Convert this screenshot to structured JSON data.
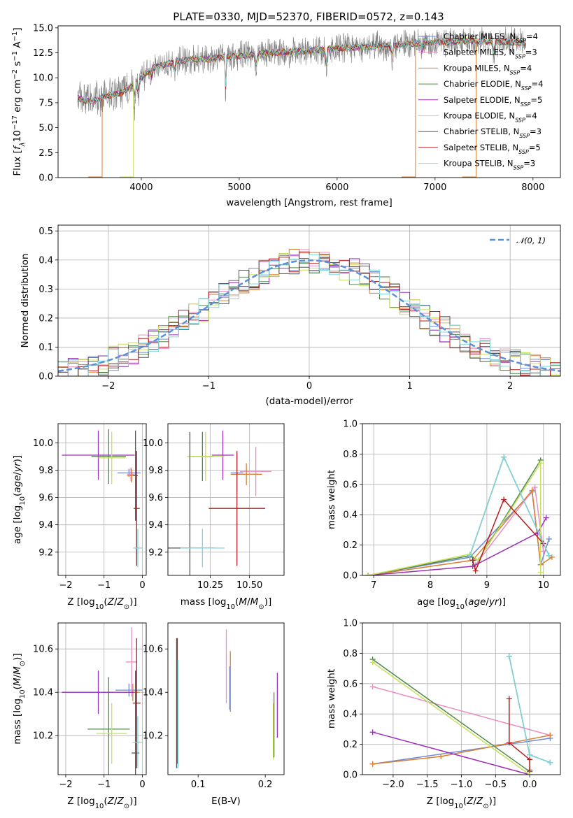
{
  "figure": {
    "title": "PLATE=0330, MJD=52370, FIBERID=0572, z=0.143"
  },
  "colors": {
    "Chabrier MILES": "#6f8ad7",
    "Salpeter MILES": "#e88fc3",
    "Kroupa MILES": "#d98031",
    "Chabrier ELODIE": "#4f8a4c",
    "Salpeter ELODIE": "#9b30b8",
    "Kroupa ELODIE": "#c8e05a",
    "Chabrier STELIB": "#555555",
    "Salpeter STELIB": "#b51d1d",
    "Kroupa STELIB": "#7fd6dc",
    "data": "#808080",
    "normal": "#5b8fd6"
  },
  "chart_data": [
    {
      "id": "spectrum",
      "type": "line",
      "title": "PLATE=0330, MJD=52370, FIBERID=0572, z=0.143",
      "xlabel": "wavelength [Angstrom, rest frame]",
      "ylabel": "Flux [f_λ 10^-17 erg cm^-2 s^-1 A^-1]",
      "xlim": [
        3150,
        8280
      ],
      "ylim": [
        0,
        15.2
      ],
      "xticks": [
        4000,
        5000,
        6000,
        7000,
        8000
      ],
      "yticks": [
        0.0,
        2.5,
        5.0,
        7.5,
        10.0,
        12.5,
        15.0
      ],
      "ytick_labels": [
        "0.0",
        "2.5",
        "5.0",
        "7.5",
        "10.0",
        "12.5",
        "15.0"
      ],
      "grid": false,
      "legend_position": "right",
      "continuum": {
        "x": [
          3350,
          3500,
          3650,
          3800,
          3950,
          4100,
          4300,
          4500,
          4700,
          4900,
          5100,
          5300,
          5500,
          5700,
          5900,
          6100,
          6300,
          6500,
          6700,
          6900,
          7100,
          7300,
          7500,
          7700,
          7900
        ],
        "y": [
          7.9,
          7.6,
          8.2,
          8.5,
          9.6,
          10.9,
          11.5,
          11.8,
          11.9,
          12.1,
          12.3,
          12.5,
          12.6,
          12.7,
          12.9,
          13.0,
          13.1,
          13.2,
          13.4,
          13.5,
          13.6,
          13.7,
          13.7,
          13.6,
          13.5
        ]
      },
      "series": [
        {
          "name": "Chabrier MILES",
          "nssp": "4"
        },
        {
          "name": "Salpeter MILES",
          "nssp": "3"
        },
        {
          "name": "Kroupa MILES",
          "nssp": "4"
        },
        {
          "name": "Chabrier ELODIE",
          "nssp": "4"
        },
        {
          "name": "Salpeter ELODIE",
          "nssp": "5"
        },
        {
          "name": "Kroupa ELODIE",
          "nssp": "4"
        },
        {
          "name": "Chabrier STELIB",
          "nssp": "3"
        },
        {
          "name": "Salpeter STELIB",
          "nssp": "5"
        },
        {
          "name": "Kroupa STELIB",
          "nssp": "3"
        }
      ]
    },
    {
      "id": "residuals",
      "type": "histogram",
      "xlabel": "(data-model)/error",
      "ylabel": "Normed distribution",
      "xlim": [
        -2.5,
        2.5
      ],
      "ylim": [
        0,
        0.52
      ],
      "xticks": [
        -2,
        -1,
        0,
        1,
        2
      ],
      "xtick_labels": [
        "−2",
        "−1",
        "0",
        "1",
        "2"
      ],
      "yticks": [
        0.0,
        0.1,
        0.2,
        0.3,
        0.4,
        0.5
      ],
      "ytick_labels": [
        "0.0",
        "0.1",
        "0.2",
        "0.3",
        "0.4",
        "0.5"
      ],
      "grid": true,
      "legend_position": "top-right",
      "legend_entry": "𝒩(0, 1)",
      "bin_width": 0.1
    },
    {
      "id": "age-Z",
      "type": "errorbar",
      "xlabel": "Z [log10(Z/Z⊙)]",
      "ylabel": "age [log10(age/yr)]",
      "xlim": [
        -2.2,
        0.1
      ],
      "ylim": [
        9.03,
        10.14
      ],
      "xticks": [
        -2,
        -1,
        0
      ],
      "xtick_labels": [
        "−2",
        "−1",
        "0"
      ],
      "yticks": [
        9.2,
        9.4,
        9.6,
        9.8,
        10.0
      ],
      "ytick_labels": [
        "9.2",
        "9.4",
        "9.6",
        "9.8",
        "10.0"
      ],
      "grid": true,
      "points": [
        {
          "series": "Chabrier MILES",
          "x": -0.35,
          "xerr": 0.3,
          "y": 9.78,
          "yerr": 0.03
        },
        {
          "series": "Salpeter MILES",
          "x": -0.3,
          "xerr": 0.1,
          "y": 9.77,
          "yerr": 0.05
        },
        {
          "series": "Kroupa MILES",
          "x": -0.28,
          "xerr": 0.12,
          "y": 9.76,
          "yerr": 0.05
        },
        {
          "series": "Chabrier ELODIE",
          "x": -0.88,
          "xerr": 0.45,
          "y": 9.9,
          "yerr": 0.2
        },
        {
          "series": "Salpeter ELODIE",
          "x": -1.15,
          "xerr": 0.95,
          "y": 9.91,
          "yerr": 0.18
        },
        {
          "series": "Kroupa ELODIE",
          "x": -0.8,
          "xerr": 0.35,
          "y": 9.89,
          "yerr": 0.19
        },
        {
          "series": "Chabrier STELIB",
          "x": -0.18,
          "xerr": 0.06,
          "y": 9.76,
          "yerr": 0.33
        },
        {
          "series": "Salpeter STELIB",
          "x": -0.15,
          "xerr": 0.08,
          "y": 9.52,
          "yerr": 0.42
        },
        {
          "series": "Kroupa STELIB",
          "x": -0.12,
          "xerr": 0.12,
          "y": 9.23,
          "yerr": 0.14
        }
      ]
    },
    {
      "id": "age-mass",
      "type": "errorbar",
      "xlabel": "mass [log10(M/M⊙)]",
      "ylabel": "",
      "xlim": [
        9.98,
        10.72
      ],
      "ylim": [
        9.03,
        10.14
      ],
      "xticks": [
        10.25,
        10.5
      ],
      "xtick_labels": [
        "10.25",
        "10.50"
      ],
      "yticks": [
        9.2,
        9.4,
        9.6,
        9.8,
        10.0
      ],
      "ytick_labels": [
        "9.2",
        "9.4",
        "9.6",
        "9.8",
        "10.0"
      ],
      "grid": true,
      "points": [
        {
          "series": "Chabrier MILES",
          "x": 10.42,
          "xerr": 0.04,
          "y": 9.78,
          "yerr": 0.14
        },
        {
          "series": "Salpeter MILES",
          "x": 10.54,
          "xerr": 0.1,
          "y": 9.79,
          "yerr": 0.18
        },
        {
          "series": "Kroupa MILES",
          "x": 10.48,
          "xerr": 0.1,
          "y": 9.77,
          "yerr": 0.08
        },
        {
          "series": "Chabrier ELODIE",
          "x": 10.2,
          "xerr": 0.07,
          "y": 9.9,
          "yerr": 0.18
        },
        {
          "series": "Salpeter ELODIE",
          "x": 10.33,
          "xerr": 0.07,
          "y": 9.91,
          "yerr": 0.18
        },
        {
          "series": "Kroupa ELODIE",
          "x": 10.22,
          "xerr": 0.12,
          "y": 9.9,
          "yerr": 0.18
        },
        {
          "series": "Chabrier STELIB",
          "x": 10.12,
          "xerr": 0.16,
          "y": 9.23,
          "yerr": 0.85
        },
        {
          "series": "Salpeter STELIB",
          "x": 10.42,
          "xerr": 0.18,
          "y": 9.52,
          "yerr": 0.42
        },
        {
          "series": "Kroupa STELIB",
          "x": 10.2,
          "xerr": 0.14,
          "y": 9.23,
          "yerr": 0.14
        }
      ]
    },
    {
      "id": "mw-age",
      "type": "line",
      "xlabel": "age [log10(age/yr)]",
      "ylabel": "mass weight",
      "xlim": [
        6.8,
        10.3
      ],
      "ylim": [
        0,
        1.0
      ],
      "xticks": [
        7,
        8,
        9,
        10
      ],
      "xtick_labels": [
        "7",
        "8",
        "9",
        "10"
      ],
      "yticks": [
        0.0,
        0.2,
        0.4,
        0.6,
        0.8,
        1.0
      ],
      "ytick_labels": [
        "0.0",
        "0.2",
        "0.4",
        "0.6",
        "0.8",
        "1.0"
      ],
      "grid": true,
      "series": [
        {
          "name": "Chabrier MILES",
          "x": [
            6.9,
            8.7,
            9.8,
            9.95,
            10.1
          ],
          "y": [
            0.0,
            0.12,
            0.55,
            0.07,
            0.24
          ]
        },
        {
          "name": "Salpeter MILES",
          "x": [
            8.8,
            9.85,
            10.0
          ],
          "y": [
            0.07,
            0.58,
            0.16
          ]
        },
        {
          "name": "Kroupa MILES",
          "x": [
            6.9,
            8.75,
            9.8,
            9.95,
            10.15
          ],
          "y": [
            0.0,
            0.1,
            0.56,
            0.07,
            0.12
          ]
        },
        {
          "name": "Chabrier ELODIE",
          "x": [
            6.9,
            8.7,
            8.85,
            9.95
          ],
          "y": [
            0.0,
            0.13,
            0.1,
            0.76
          ]
        },
        {
          "name": "Salpeter ELODIE",
          "x": [
            6.9,
            8.75,
            9.9,
            10.05
          ],
          "y": [
            0.0,
            0.06,
            0.28,
            0.38
          ]
        },
        {
          "name": "Kroupa ELODIE",
          "x": [
            6.9,
            8.7,
            8.85,
            9.95,
            9.95
          ],
          "y": [
            0.0,
            0.14,
            0.1,
            0.74,
            0.02
          ]
        },
        {
          "name": "Chabrier STELIB",
          "x": [
            8.7,
            9.3,
            10.1
          ],
          "y": [
            0.13,
            0.78,
            0.13
          ]
        },
        {
          "name": "Salpeter STELIB",
          "x": [
            8.75,
            8.8,
            9.3,
            10.0
          ],
          "y": [
            0.1,
            0.03,
            0.5,
            0.21
          ]
        },
        {
          "name": "Kroupa STELIB",
          "x": [
            8.7,
            9.3,
            10.1
          ],
          "y": [
            0.13,
            0.78,
            0.13
          ]
        }
      ]
    },
    {
      "id": "mass-Z",
      "type": "errorbar",
      "xlabel": "Z [log10(Z/Z⊙)]",
      "ylabel": "mass [log10(M/M⊙)]",
      "xlim": [
        -2.2,
        0.1
      ],
      "ylim": [
        10.02,
        10.72
      ],
      "xticks": [
        -2,
        -1,
        0
      ],
      "xtick_labels": [
        "−2",
        "−1",
        "0"
      ],
      "yticks": [
        10.2,
        10.4,
        10.6
      ],
      "ytick_labels": [
        "10.2",
        "10.4",
        "10.6"
      ],
      "grid": true,
      "points": [
        {
          "series": "Chabrier MILES",
          "x": -0.35,
          "xerr": 0.35,
          "y": 10.41,
          "yerr": 0.03
        },
        {
          "series": "Salpeter MILES",
          "x": -0.28,
          "xerr": 0.15,
          "y": 10.54,
          "yerr": 0.16
        },
        {
          "series": "Kroupa MILES",
          "x": -0.25,
          "xerr": 0.18,
          "y": 10.4,
          "yerr": 0.04
        },
        {
          "series": "Chabrier ELODIE",
          "x": -0.88,
          "xerr": 0.55,
          "y": 10.23,
          "yerr": 0.24
        },
        {
          "series": "Salpeter ELODIE",
          "x": -1.15,
          "xerr": 0.95,
          "y": 10.4,
          "yerr": 0.1
        },
        {
          "series": "Kroupa ELODIE",
          "x": -0.8,
          "xerr": 0.4,
          "y": 10.21,
          "yerr": 0.14
        },
        {
          "series": "Chabrier STELIB",
          "x": -0.18,
          "xerr": 0.1,
          "y": 10.12,
          "yerr": 0.38
        },
        {
          "series": "Salpeter STELIB",
          "x": -0.15,
          "xerr": 0.1,
          "y": 10.35,
          "yerr": 0.3
        },
        {
          "series": "Kroupa STELIB",
          "x": -0.12,
          "xerr": 0.14,
          "y": 10.17,
          "yerr": 0.12
        }
      ]
    },
    {
      "id": "mass-ebv",
      "type": "errorbar",
      "xlabel": "E(B-V)",
      "ylabel": "",
      "xlim": [
        0.055,
        0.228
      ],
      "ylim": [
        10.02,
        10.72
      ],
      "xticks": [
        0.1,
        0.2
      ],
      "xtick_labels": [
        "0.1",
        "0.2"
      ],
      "yticks": [
        10.2,
        10.4,
        10.6
      ],
      "ytick_labels": [
        "10.2",
        "10.4",
        "10.6"
      ],
      "grid": false,
      "points": [
        {
          "series": "Chabrier STELIB",
          "x": 0.068,
          "y": 10.35,
          "yerr": 0.3
        },
        {
          "series": "Salpeter STELIB",
          "x": 0.069,
          "y": 10.36,
          "yerr": 0.29
        },
        {
          "series": "Kroupa STELIB",
          "x": 0.07,
          "y": 10.3,
          "yerr": 0.25
        },
        {
          "series": "Salpeter MILES",
          "x": 0.142,
          "y": 10.52,
          "yerr": 0.17
        },
        {
          "series": "Kroupa MILES",
          "x": 0.148,
          "y": 10.45,
          "yerr": 0.14
        },
        {
          "series": "Chabrier MILES",
          "x": 0.147,
          "y": 10.42,
          "yerr": 0.1
        },
        {
          "series": "Kroupa ELODIE",
          "x": 0.212,
          "y": 10.22,
          "yerr": 0.13
        },
        {
          "series": "Chabrier ELODIE",
          "x": 0.213,
          "y": 10.25,
          "yerr": 0.15
        },
        {
          "series": "Salpeter ELODIE",
          "x": 0.218,
          "y": 10.34,
          "yerr": 0.15
        }
      ]
    },
    {
      "id": "mw-Z",
      "type": "line",
      "xlabel": "Z [log10(Z/Z⊙)]",
      "ylabel": "mass weight",
      "xlim": [
        -2.45,
        0.45
      ],
      "ylim": [
        0,
        1.0
      ],
      "xticks": [
        -2.0,
        -1.5,
        -1.0,
        -0.5,
        0.0
      ],
      "xtick_labels": [
        "−2.0",
        "−1.5",
        "−1.0",
        "−0.5",
        "0.0"
      ],
      "yticks": [
        0.0,
        0.2,
        0.4,
        0.6,
        0.8,
        1.0
      ],
      "ytick_labels": [
        "0.0",
        "0.2",
        "0.4",
        "0.6",
        "0.8",
        "1.0"
      ],
      "grid": true,
      "series": [
        {
          "name": "Chabrier MILES",
          "x": [
            -2.3,
            0.3
          ],
          "y": [
            0.07,
            0.24
          ]
        },
        {
          "name": "Salpeter MILES",
          "x": [
            -2.3,
            0.3
          ],
          "y": [
            0.58,
            0.26
          ]
        },
        {
          "name": "Kroupa MILES",
          "x": [
            -2.3,
            -1.3,
            0.3
          ],
          "y": [
            0.07,
            0.12,
            0.26
          ]
        },
        {
          "name": "Chabrier ELODIE",
          "x": [
            -2.3,
            0.0
          ],
          "y": [
            0.76,
            0.02
          ]
        },
        {
          "name": "Salpeter ELODIE",
          "x": [
            -2.3,
            0.0
          ],
          "y": [
            0.28,
            0.0
          ]
        },
        {
          "name": "Kroupa ELODIE",
          "x": [
            -2.3,
            0.0,
            0.0
          ],
          "y": [
            0.74,
            0.0,
            0.1
          ]
        },
        {
          "name": "Chabrier STELIB",
          "x": [
            -0.3,
            0.0,
            0.3
          ],
          "y": [
            0.78,
            0.13,
            0.08
          ]
        },
        {
          "name": "Salpeter STELIB",
          "x": [
            -0.3,
            -0.3,
            0.0,
            0.0
          ],
          "y": [
            0.5,
            0.21,
            0.1,
            0.03
          ]
        },
        {
          "name": "Kroupa STELIB",
          "x": [
            -0.3,
            0.0,
            0.3
          ],
          "y": [
            0.78,
            0.13,
            0.08
          ]
        }
      ]
    }
  ]
}
